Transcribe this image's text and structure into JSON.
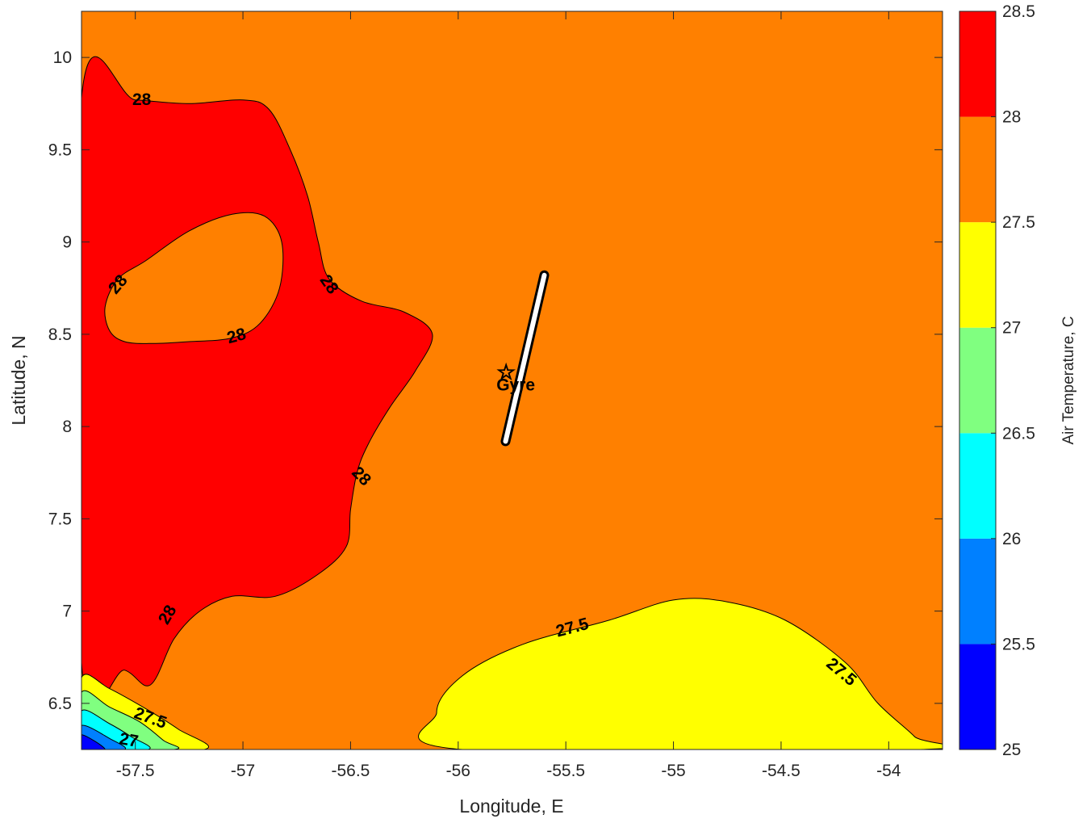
{
  "chart_data": {
    "type": "contour",
    "title": "",
    "xlabel": "Longitude, E",
    "ylabel": "Latitude, N",
    "colorbar_label": "Air Temperature, C",
    "xlim": [
      -57.75,
      -53.75
    ],
    "ylim": [
      6.25,
      10.25
    ],
    "xticks": [
      -57.5,
      -57,
      -56.5,
      -56,
      -55.5,
      -55,
      -54.5,
      -54
    ],
    "xtick_labels": [
      "-57.5",
      "-57",
      "-56.5",
      "-56",
      "-55.5",
      "-55",
      "-54.5",
      "-54"
    ],
    "yticks": [
      6.5,
      7,
      7.5,
      8,
      8.5,
      9,
      9.5,
      10
    ],
    "ytick_labels": [
      "6.5",
      "7",
      "7.5",
      "8",
      "8.5",
      "9",
      "9.5",
      "10"
    ],
    "colorbar_ticks": [
      25,
      25.5,
      26,
      26.5,
      27,
      27.5,
      28,
      28.5
    ],
    "colorbar_tick_labels": [
      "25",
      "25.5",
      "26",
      "26.5",
      "27",
      "27.5",
      "28",
      "28.5"
    ],
    "levels": [
      {
        "from": 25.0,
        "to": 25.5,
        "color": "#0000ff"
      },
      {
        "from": 25.5,
        "to": 26.0,
        "color": "#0080ff"
      },
      {
        "from": 26.0,
        "to": 26.5,
        "color": "#00ffff"
      },
      {
        "from": 26.5,
        "to": 27.0,
        "color": "#80ff80"
      },
      {
        "from": 27.0,
        "to": 27.5,
        "color": "#ffff00"
      },
      {
        "from": 27.5,
        "to": 28.0,
        "color": "#ff8000"
      },
      {
        "from": 28.0,
        "to": 28.5,
        "color": "#ff0000"
      },
      {
        "from": 28.5,
        "to": 29.0,
        "color": "#800000"
      }
    ],
    "background_level": 27.75,
    "regions": [
      {
        "name": "warm-region",
        "level": 28.25,
        "points": [
          [
            -57.75,
            9.78
          ],
          [
            -57.5,
            9.77
          ],
          [
            -57.25,
            9.75
          ],
          [
            -57.0,
            9.77
          ],
          [
            -56.88,
            9.72
          ],
          [
            -56.78,
            9.5
          ],
          [
            -56.7,
            9.25
          ],
          [
            -56.65,
            9.0
          ],
          [
            -56.6,
            8.8
          ],
          [
            -56.45,
            8.68
          ],
          [
            -56.25,
            8.62
          ],
          [
            -56.12,
            8.5
          ],
          [
            -56.2,
            8.3
          ],
          [
            -56.32,
            8.1
          ],
          [
            -56.42,
            7.9
          ],
          [
            -56.47,
            7.75
          ],
          [
            -56.5,
            7.55
          ],
          [
            -56.52,
            7.35
          ],
          [
            -56.65,
            7.2
          ],
          [
            -56.85,
            7.08
          ],
          [
            -57.05,
            7.08
          ],
          [
            -57.2,
            7.0
          ],
          [
            -57.32,
            6.85
          ],
          [
            -57.43,
            6.6
          ],
          [
            -57.55,
            6.68
          ],
          [
            -57.75,
            6.72
          ]
        ]
      },
      {
        "name": "inner-hole",
        "level": 27.75,
        "points": [
          [
            -57.62,
            8.52
          ],
          [
            -57.55,
            8.46
          ],
          [
            -57.42,
            8.45
          ],
          [
            -57.25,
            8.46
          ],
          [
            -57.05,
            8.48
          ],
          [
            -56.92,
            8.56
          ],
          [
            -56.83,
            8.75
          ],
          [
            -56.82,
            9.0
          ],
          [
            -56.9,
            9.14
          ],
          [
            -57.05,
            9.15
          ],
          [
            -57.25,
            9.06
          ],
          [
            -57.45,
            8.9
          ],
          [
            -57.58,
            8.8
          ],
          [
            -57.64,
            8.65
          ]
        ]
      },
      {
        "name": "cool-region-southeast",
        "level": 27.25,
        "points": [
          [
            -55.98,
            6.25
          ],
          [
            -56.1,
            6.45
          ],
          [
            -55.98,
            6.65
          ],
          [
            -55.7,
            6.82
          ],
          [
            -55.3,
            6.95
          ],
          [
            -55.0,
            7.06
          ],
          [
            -54.75,
            7.05
          ],
          [
            -54.48,
            6.95
          ],
          [
            -54.2,
            6.72
          ],
          [
            -54.05,
            6.5
          ],
          [
            -53.88,
            6.32
          ],
          [
            -53.85,
            6.25
          ]
        ]
      },
      {
        "name": "cool-corner-27",
        "level": 27.25,
        "points": [
          [
            -57.75,
            6.25
          ],
          [
            -57.75,
            6.64
          ],
          [
            -57.62,
            6.58
          ],
          [
            -57.45,
            6.47
          ],
          [
            -57.3,
            6.36
          ],
          [
            -57.18,
            6.25
          ]
        ]
      },
      {
        "name": "cool-corner-26.5",
        "level": 26.75,
        "points": [
          [
            -57.75,
            6.25
          ],
          [
            -57.75,
            6.56
          ],
          [
            -57.62,
            6.48
          ],
          [
            -57.48,
            6.4
          ],
          [
            -57.37,
            6.3
          ],
          [
            -57.32,
            6.25
          ]
        ]
      },
      {
        "name": "cool-corner-26",
        "level": 26.25,
        "points": [
          [
            -57.75,
            6.25
          ],
          [
            -57.75,
            6.46
          ],
          [
            -57.62,
            6.39
          ],
          [
            -57.52,
            6.32
          ],
          [
            -57.44,
            6.25
          ]
        ]
      },
      {
        "name": "cool-corner-25.5",
        "level": 25.75,
        "points": [
          [
            -57.75,
            6.25
          ],
          [
            -57.75,
            6.38
          ],
          [
            -57.62,
            6.31
          ],
          [
            -57.55,
            6.25
          ]
        ]
      },
      {
        "name": "cool-corner-25",
        "level": 25.25,
        "points": [
          [
            -57.75,
            6.25
          ],
          [
            -57.75,
            6.33
          ],
          [
            -57.64,
            6.25
          ]
        ]
      }
    ],
    "contour_labels": [
      {
        "text": "28",
        "x": -57.47,
        "y": 9.77,
        "angle": 0
      },
      {
        "text": "28",
        "x": -57.58,
        "y": 8.77,
        "angle": -50
      },
      {
        "text": "28",
        "x": -56.6,
        "y": 8.77,
        "angle": 55
      },
      {
        "text": "28",
        "x": -57.03,
        "y": 8.49,
        "angle": -15
      },
      {
        "text": "28",
        "x": -56.45,
        "y": 7.73,
        "angle": 45
      },
      {
        "text": "28",
        "x": -57.35,
        "y": 6.98,
        "angle": -60
      },
      {
        "text": "27.5",
        "x": -55.47,
        "y": 6.91,
        "angle": -15
      },
      {
        "text": "27.5",
        "x": -54.22,
        "y": 6.67,
        "angle": 40
      },
      {
        "text": "27.5",
        "x": -57.43,
        "y": 6.42,
        "angle": 20
      },
      {
        "text": "27",
        "x": -57.53,
        "y": 6.3,
        "angle": 10
      }
    ],
    "track": {
      "points": [
        [
          -55.6,
          8.82
        ],
        [
          -55.78,
          7.92
        ]
      ]
    },
    "marker": {
      "label": "Gyre",
      "x": -55.77,
      "y": 8.3
    }
  }
}
